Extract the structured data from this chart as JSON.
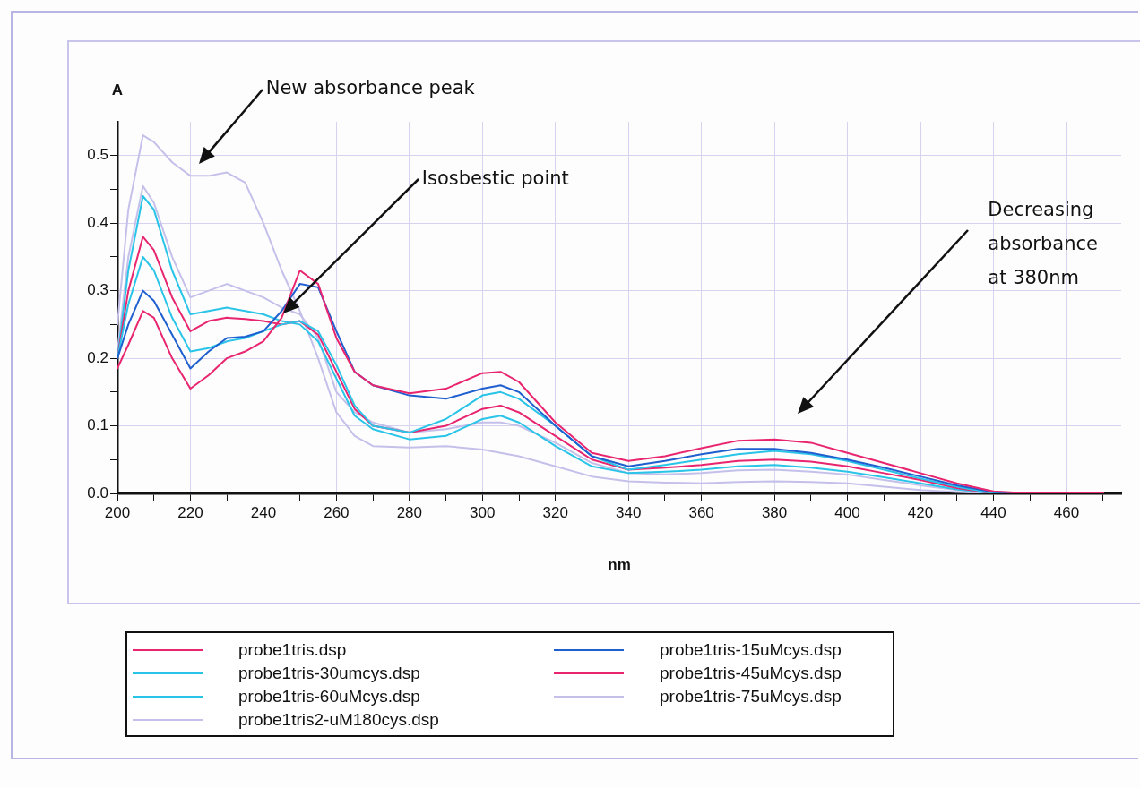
{
  "chart_data": {
    "type": "line",
    "xlabel": "nm",
    "ylabel": "A",
    "x": [
      200,
      203,
      207,
      210,
      215,
      220,
      225,
      230,
      235,
      240,
      245,
      250,
      255,
      260,
      265,
      270,
      280,
      290,
      300,
      305,
      310,
      320,
      330,
      340,
      350,
      360,
      370,
      380,
      390,
      400,
      410,
      420,
      430,
      440,
      450,
      460,
      470
    ],
    "xlim": [
      200,
      475
    ],
    "xticks": [
      200,
      {
        "value": 210,
        "label": null
      },
      220,
      {
        "value": 230,
        "label": null
      },
      240,
      {
        "value": 250,
        "label": null
      },
      260,
      {
        "value": 270,
        "label": null
      },
      280,
      {
        "value": 290,
        "label": null
      },
      300,
      {
        "value": 310,
        "label": null
      },
      320,
      {
        "value": 330,
        "label": null
      },
      340,
      {
        "value": 350,
        "label": null
      },
      360,
      {
        "value": 370,
        "label": null
      },
      380,
      {
        "value": 390,
        "label": null
      },
      400,
      {
        "value": 410,
        "label": null
      },
      420,
      {
        "value": 430,
        "label": null
      },
      440,
      {
        "value": 450,
        "label": null
      },
      460,
      {
        "value": 470,
        "label": null
      }
    ],
    "ylim": [
      0,
      0.55
    ],
    "yticks": [
      {
        "value": 0,
        "label": "0.0"
      },
      {
        "value": 0.05,
        "label": null
      },
      0.1,
      {
        "value": 0.15,
        "label": null
      },
      0.2,
      {
        "value": 0.25,
        "label": null
      },
      0.3,
      {
        "value": 0.35,
        "label": null
      },
      0.4,
      {
        "value": 0.45,
        "label": null
      },
      0.5
    ],
    "grid": true,
    "legend": "bottom",
    "marker": "none",
    "line_style": "solid",
    "series": [
      {
        "name": "probe1tris.dsp",
        "color": "#e8256e",
        "values": [
          0.185,
          0.22,
          0.27,
          0.26,
          0.2,
          0.155,
          0.175,
          0.2,
          0.21,
          0.225,
          0.26,
          0.33,
          0.31,
          0.23,
          0.18,
          0.16,
          0.148,
          0.155,
          0.178,
          0.18,
          0.165,
          0.105,
          0.06,
          0.048,
          0.055,
          0.067,
          0.078,
          0.08,
          0.075,
          0.06,
          0.045,
          0.03,
          0.015,
          0.003,
          0,
          0,
          0
        ]
      },
      {
        "name": "probe1tris-15uMcys.dsp",
        "color": "#1f5fcf",
        "values": [
          0.2,
          0.25,
          0.3,
          0.285,
          0.235,
          0.185,
          0.21,
          0.23,
          0.232,
          0.24,
          0.27,
          0.31,
          0.305,
          0.24,
          0.18,
          0.16,
          0.145,
          0.14,
          0.155,
          0.16,
          0.15,
          0.1,
          0.055,
          0.04,
          0.048,
          0.058,
          0.066,
          0.066,
          0.06,
          0.05,
          0.038,
          0.025,
          0.012,
          0.002,
          0,
          null,
          null
        ]
      },
      {
        "name": "probe1tris-30umcys.dsp",
        "color": "#29c4e8",
        "values": [
          0.2,
          0.28,
          0.35,
          0.33,
          0.26,
          0.21,
          0.215,
          0.225,
          0.23,
          0.24,
          0.25,
          0.255,
          0.24,
          0.19,
          0.13,
          0.1,
          0.09,
          0.11,
          0.145,
          0.15,
          0.14,
          0.1,
          0.055,
          0.035,
          0.042,
          0.05,
          0.058,
          0.063,
          0.058,
          0.048,
          0.035,
          0.022,
          0.01,
          0,
          0,
          null,
          null
        ]
      },
      {
        "name": "probe1tris-45uMcys.dsp",
        "color": "#e8256e",
        "values": [
          0.2,
          0.3,
          0.38,
          0.36,
          0.29,
          0.24,
          0.255,
          0.26,
          0.258,
          0.255,
          0.25,
          0.255,
          0.235,
          0.18,
          0.125,
          0.1,
          0.09,
          0.1,
          0.125,
          0.13,
          0.12,
          0.085,
          0.05,
          0.035,
          0.038,
          0.042,
          0.048,
          0.05,
          0.047,
          0.04,
          0.03,
          0.02,
          0.008,
          0,
          0,
          0,
          0
        ]
      },
      {
        "name": "probe1tris-60uMcys.dsp",
        "color": "#29c4e8",
        "values": [
          0.2,
          0.33,
          0.44,
          0.42,
          0.33,
          0.265,
          0.27,
          0.275,
          0.27,
          0.265,
          0.255,
          0.25,
          0.225,
          0.17,
          0.115,
          0.095,
          0.08,
          0.085,
          0.11,
          0.115,
          0.105,
          0.07,
          0.04,
          0.03,
          0.032,
          0.035,
          0.04,
          0.042,
          0.038,
          0.032,
          0.024,
          0.015,
          0.006,
          0,
          0,
          null,
          null
        ]
      },
      {
        "name": "probe1tris-75uMcys.dsp",
        "color": "#c4c0ea",
        "values": [
          0.21,
          0.35,
          0.455,
          0.43,
          0.35,
          0.29,
          0.3,
          0.31,
          0.3,
          0.29,
          0.275,
          0.265,
          0.23,
          0.15,
          0.12,
          0.105,
          0.09,
          0.095,
          0.105,
          0.105,
          0.1,
          0.075,
          0.045,
          0.03,
          0.028,
          0.03,
          0.034,
          0.035,
          0.032,
          0.028,
          0.02,
          0.012,
          0.005,
          0,
          0,
          0,
          0
        ]
      },
      {
        "name": "probe1tris2-uM180cys.dsp",
        "color": "#c4c0ea",
        "values": [
          0.25,
          0.42,
          0.53,
          0.52,
          0.49,
          0.47,
          0.47,
          0.475,
          0.46,
          0.4,
          0.33,
          0.27,
          0.2,
          0.12,
          0.085,
          0.07,
          0.068,
          0.07,
          0.065,
          0.06,
          0.055,
          0.04,
          0.025,
          0.018,
          0.016,
          0.015,
          0.017,
          0.018,
          0.017,
          0.015,
          0.01,
          0.005,
          0.002,
          0,
          0,
          0,
          0
        ]
      }
    ],
    "annotations": [
      "New absorbance peak",
      "Isosbestic point",
      "Decreasing absorbance at 380nm"
    ]
  }
}
